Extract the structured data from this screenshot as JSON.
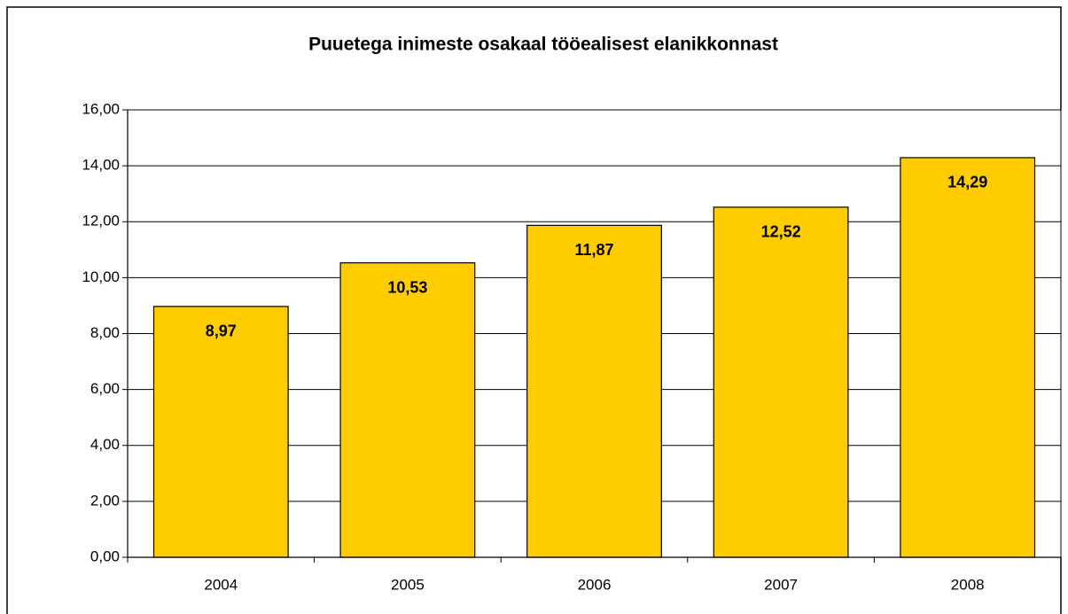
{
  "chart_data": {
    "type": "bar",
    "title": "Puuetega inimeste osakaal tööealisest elanikkonnast",
    "categories": [
      "2004",
      "2005",
      "2006",
      "2007",
      "2008"
    ],
    "values": [
      8.97,
      10.53,
      11.87,
      12.52,
      14.29
    ],
    "value_labels": [
      "8,97",
      "10,53",
      "11,87",
      "12,52",
      "14,29"
    ],
    "color": "#ffcc00",
    "ylim": [
      0,
      16
    ],
    "yticks": [
      {
        "value": 0,
        "label": "0,00"
      },
      {
        "value": 2,
        "label": "2,00"
      },
      {
        "value": 4,
        "label": "4,00"
      },
      {
        "value": 6,
        "label": "6,00"
      },
      {
        "value": 8,
        "label": "8,00"
      },
      {
        "value": 10,
        "label": "10,00"
      },
      {
        "value": 12,
        "label": "12,00"
      },
      {
        "value": 14,
        "label": "14,00"
      },
      {
        "value": 16,
        "label": "16,00"
      }
    ],
    "grid": true
  }
}
